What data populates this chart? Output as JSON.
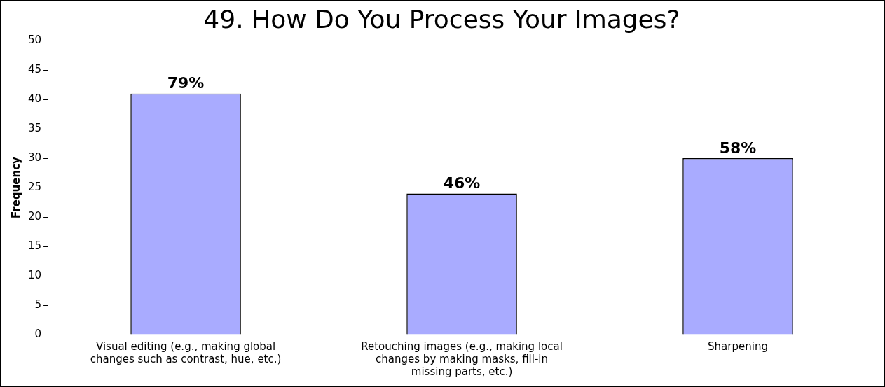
{
  "chart_data": {
    "type": "bar",
    "title": "49. How Do You Process Your Images?",
    "ylabel": "Frequency",
    "categories": [
      "Visual editing (e.g., making global changes such as contrast, hue, etc.)",
      "Retouching images (e.g., making local changes by making masks, fill-in missing parts, etc.)",
      "Sharpening"
    ],
    "values": [
      41,
      24,
      30
    ],
    "color": "#a9abff",
    "annotations": [
      {
        "text": "79%",
        "x": "Visual editing (e.g., making global changes such as contrast, hue, etc.)",
        "y": 41
      },
      {
        "text": "46%",
        "x": "Retouching images (e.g., making local changes by making masks, fill-in missing parts, etc.)",
        "y": 24
      },
      {
        "text": "58%",
        "x": "Sharpening",
        "y": 30
      }
    ],
    "ylim": [
      0,
      50
    ],
    "yticks": [
      0,
      5,
      10,
      15,
      20,
      25,
      30,
      35,
      40,
      45,
      50
    ],
    "grid": false,
    "legend": false
  }
}
